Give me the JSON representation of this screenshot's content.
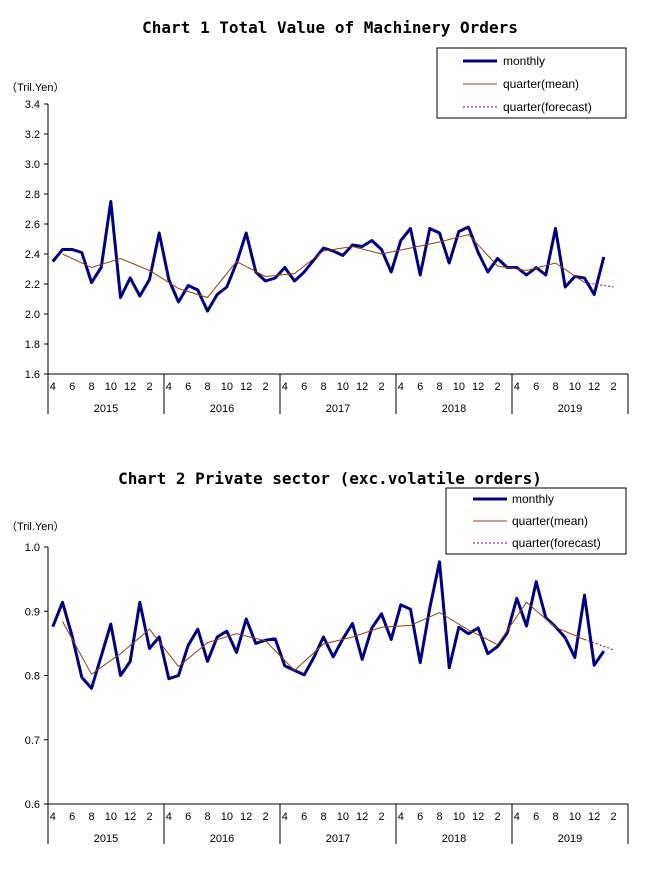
{
  "chart_data": [
    {
      "type": "line",
      "title": "Chart 1 Total Value of Machinery Orders",
      "unit_label": "（Tril.Yen）",
      "ylim": [
        1.6,
        3.4
      ],
      "yticks": [
        "1.6",
        "1.8",
        "2.0",
        "2.2",
        "2.4",
        "2.6",
        "2.8",
        "3.0",
        "3.2",
        "3.4"
      ],
      "month_ticks": [
        "4",
        "6",
        "8",
        "10",
        "12",
        "2"
      ],
      "years": [
        "2015",
        "2016",
        "2017",
        "2018",
        "2019"
      ],
      "legend": [
        "monthly",
        "quarter(mean)",
        "quarter(forecast)"
      ],
      "legend_position": "top-right",
      "grid": false,
      "colors": {
        "monthly": "#000080",
        "mean": "#8B4513",
        "forecast": "#800080"
      },
      "series": [
        {
          "name": "monthly",
          "x_start": "2015-04",
          "values": [
            2.35,
            2.43,
            2.43,
            2.41,
            2.21,
            2.31,
            2.75,
            2.11,
            2.24,
            2.12,
            2.23,
            2.54,
            2.23,
            2.08,
            2.19,
            2.16,
            2.02,
            2.13,
            2.18,
            2.34,
            2.54,
            2.28,
            2.22,
            2.24,
            2.31,
            2.22,
            2.28,
            2.36,
            2.44,
            2.42,
            2.39,
            2.46,
            2.45,
            2.49,
            2.43,
            2.28,
            2.49,
            2.57,
            2.26,
            2.57,
            2.54,
            2.34,
            2.55,
            2.58,
            2.41,
            2.28,
            2.37,
            2.31,
            2.31,
            2.26,
            2.31,
            2.26,
            2.57,
            2.18,
            2.25,
            2.24,
            2.13,
            2.38
          ]
        },
        {
          "name": "quarter(mean)",
          "x": [
            "2015-05",
            "2015-08",
            "2015-11",
            "2016-02",
            "2016-05",
            "2016-08",
            "2016-11",
            "2017-02",
            "2017-05",
            "2017-08",
            "2017-11",
            "2018-02",
            "2018-05",
            "2018-08",
            "2018-11",
            "2019-02",
            "2019-05",
            "2019-08",
            "2019-11"
          ],
          "values": [
            2.4,
            2.31,
            2.37,
            2.29,
            2.17,
            2.11,
            2.35,
            2.25,
            2.27,
            2.42,
            2.45,
            2.4,
            2.44,
            2.48,
            2.53,
            2.32,
            2.29,
            2.34,
            2.21
          ]
        },
        {
          "name": "quarter(forecast)",
          "x": [
            "2019-11",
            "2020-02"
          ],
          "values": [
            2.21,
            2.18
          ]
        }
      ]
    },
    {
      "type": "line",
      "title": "Chart 2 Private sector (exc.volatile orders)",
      "unit_label": "（Tril.Yen）",
      "ylim": [
        0.6,
        1.0
      ],
      "yticks": [
        "0.6",
        "0.7",
        "0.8",
        "0.9",
        "1.0"
      ],
      "month_ticks": [
        "4",
        "6",
        "8",
        "10",
        "12",
        "2"
      ],
      "years": [
        "2015",
        "2016",
        "2017",
        "2018",
        "2019"
      ],
      "legend": [
        "monthly",
        "quarter(mean)",
        "quarter(forecast)"
      ],
      "legend_position": "top-right",
      "grid": false,
      "colors": {
        "monthly": "#000080",
        "mean": "#8B4513",
        "forecast": "#800080"
      },
      "series": [
        {
          "name": "monthly",
          "x_start": "2015-04",
          "values": [
            0.876,
            0.914,
            0.861,
            0.797,
            0.78,
            0.83,
            0.88,
            0.8,
            0.822,
            0.914,
            0.842,
            0.86,
            0.795,
            0.8,
            0.847,
            0.872,
            0.822,
            0.86,
            0.869,
            0.836,
            0.888,
            0.85,
            0.855,
            0.857,
            0.815,
            0.808,
            0.801,
            0.828,
            0.86,
            0.829,
            0.857,
            0.881,
            0.825,
            0.874,
            0.896,
            0.856,
            0.91,
            0.903,
            0.82,
            0.905,
            0.977,
            0.812,
            0.875,
            0.865,
            0.874,
            0.834,
            0.845,
            0.866,
            0.92,
            0.877,
            0.946,
            0.89,
            0.876,
            0.859,
            0.828,
            0.925,
            0.816,
            0.838
          ]
        },
        {
          "name": "quarter(mean)",
          "x": [
            "2015-05",
            "2015-08",
            "2015-11",
            "2016-02",
            "2016-05",
            "2016-08",
            "2016-11",
            "2017-02",
            "2017-05",
            "2017-08",
            "2017-11",
            "2018-02",
            "2018-05",
            "2018-08",
            "2018-11",
            "2019-02",
            "2019-05",
            "2019-08",
            "2019-11"
          ],
          "values": [
            0.884,
            0.802,
            0.834,
            0.872,
            0.814,
            0.851,
            0.865,
            0.854,
            0.808,
            0.849,
            0.86,
            0.875,
            0.878,
            0.898,
            0.871,
            0.848,
            0.914,
            0.875,
            0.856
          ]
        },
        {
          "name": "quarter(forecast)",
          "x": [
            "2019-11",
            "2020-02"
          ],
          "values": [
            0.856,
            0.84
          ]
        }
      ]
    }
  ]
}
